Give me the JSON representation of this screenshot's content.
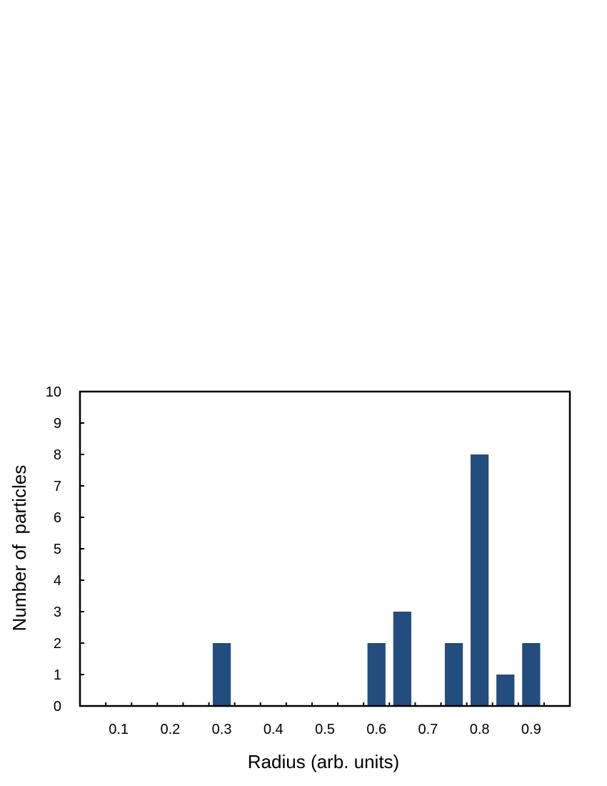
{
  "chart_data": {
    "type": "bar",
    "title": "",
    "xlabel": "Radius (arb. units)",
    "ylabel": "Number of  particles",
    "x_ticks": [
      "0.1",
      "0.2",
      "0.3",
      "0.4",
      "0.5",
      "0.6",
      "0.7",
      "0.8",
      "0.9"
    ],
    "y_ticks": [
      "0",
      "1",
      "2",
      "3",
      "4",
      "5",
      "6",
      "7",
      "8",
      "9",
      "10"
    ],
    "xlim": [
      0.025,
      0.975
    ],
    "ylim": [
      0,
      10
    ],
    "bar_width": 0.035,
    "grid": false,
    "legend": "none",
    "bars": [
      {
        "x": 0.3,
        "value": 2
      },
      {
        "x": 0.6,
        "value": 2
      },
      {
        "x": 0.65,
        "value": 3
      },
      {
        "x": 0.75,
        "value": 2
      },
      {
        "x": 0.8,
        "value": 8
      },
      {
        "x": 0.85,
        "value": 1
      },
      {
        "x": 0.9,
        "value": 2
      }
    ],
    "bar_color": "#234d7e"
  }
}
